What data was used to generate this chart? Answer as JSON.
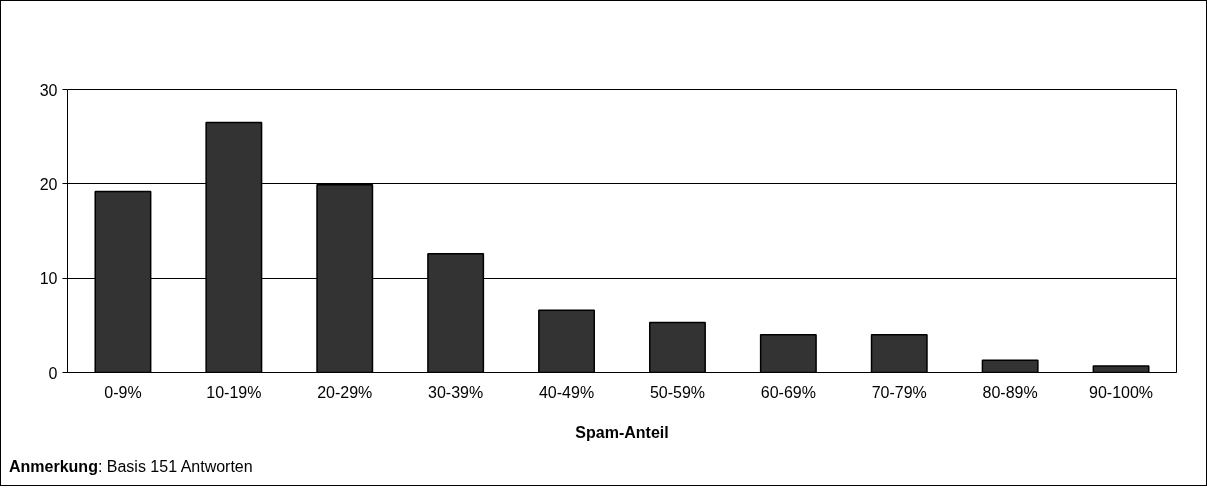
{
  "chart_data": {
    "type": "bar",
    "xlabel": "Spam-Anteil",
    "categories": [
      "0-9%",
      "10-19%",
      "20-29%",
      "30-39%",
      "40-49%",
      "50-59%",
      "60-69%",
      "70-79%",
      "80-89%",
      "90-100%"
    ],
    "values": [
      19.2,
      26.5,
      19.9,
      12.6,
      6.6,
      5.3,
      4.0,
      4.0,
      1.3,
      0.7
    ],
    "color": "#333333",
    "ylim": [
      0,
      30
    ],
    "yticks": [
      0,
      10,
      20,
      30
    ],
    "grid": "y",
    "annotations": [
      "Anmerkung: Basis 151 Antworten"
    ]
  }
}
